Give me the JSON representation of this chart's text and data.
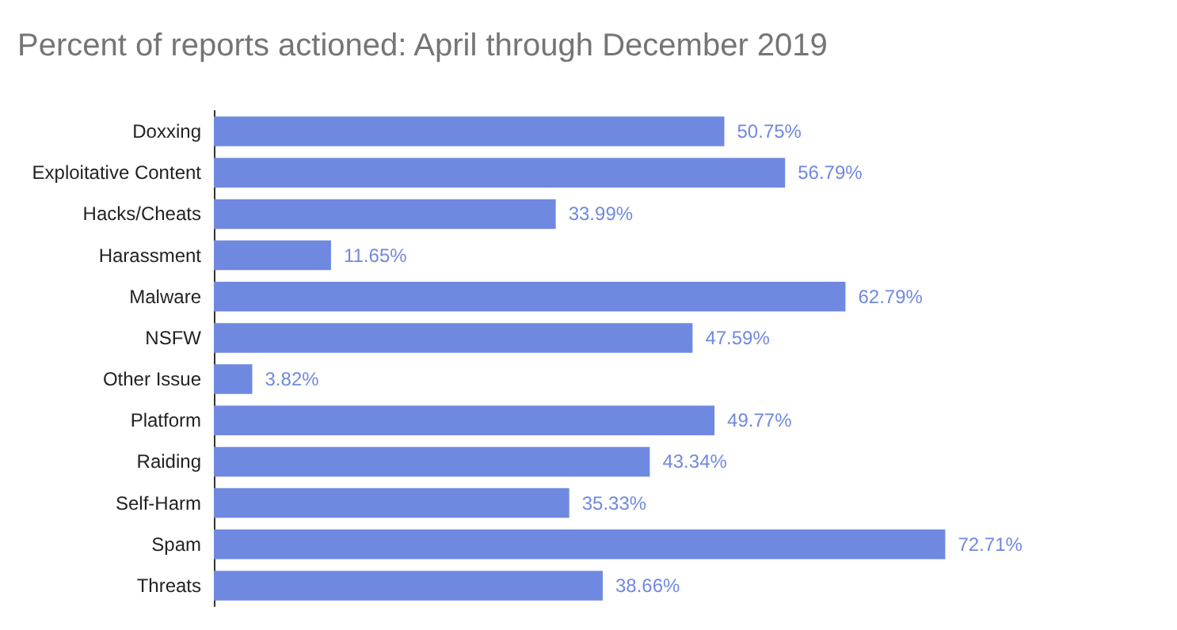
{
  "chart_data": {
    "type": "bar",
    "orientation": "horizontal",
    "title": "Percent of reports actioned: April through December 2019",
    "categories": [
      "Doxxing",
      "Exploitative Content",
      "Hacks/Cheats",
      "Harassment",
      "Malware",
      "NSFW",
      "Other Issue",
      "Platform",
      "Raiding",
      "Self-Harm",
      "Spam",
      "Threats"
    ],
    "series": [
      {
        "color": "#7089e0",
        "values": [
          50.75,
          56.79,
          33.99,
          11.65,
          62.79,
          47.59,
          3.82,
          49.77,
          43.34,
          35.33,
          72.71,
          38.66
        ],
        "value_labels": [
          "50.75%",
          "56.79%",
          "33.99%",
          "11.65%",
          "62.79%",
          "47.59%",
          "3.82%",
          "49.77%",
          "43.34%",
          "35.33%",
          "72.71%",
          "38.66%"
        ]
      }
    ]
  }
}
